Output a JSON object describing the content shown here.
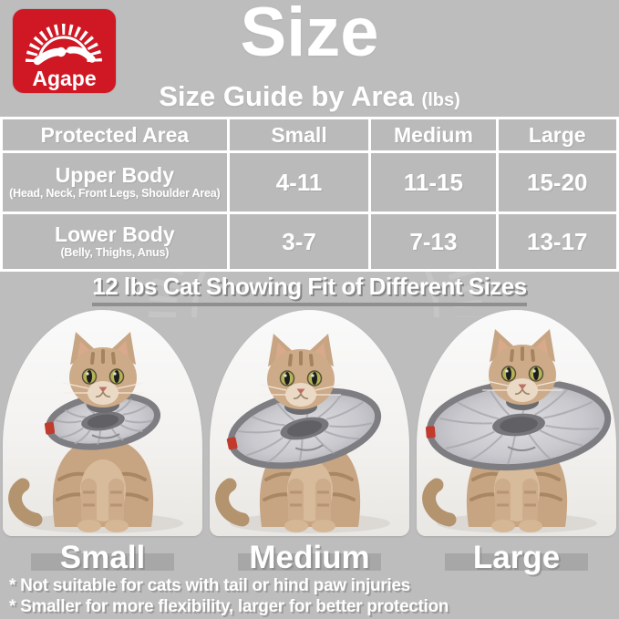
{
  "colors": {
    "background": "#bdbdbd",
    "brand_red": "#cf1824",
    "table_cell_gray": "#b0b0b0",
    "text_white": "#ffffff",
    "shadow_gray": "#8f8f8f",
    "cone_gray": "#c9c9ce",
    "cone_rim_gray": "#7d7d82"
  },
  "logo": {
    "brand": "Agape"
  },
  "header": {
    "title": "Size",
    "subtitle": "Size Guide by Area",
    "subtitle_unit": "(lbs)"
  },
  "table": {
    "headers": [
      "Protected Area",
      "Small",
      "Medium",
      "Large"
    ],
    "rows": [
      {
        "area": "Upper Body",
        "detail": "(Head, Neck, Front Legs, Shoulder Area)",
        "values": [
          "4-11",
          "11-15",
          "15-20"
        ]
      },
      {
        "area": "Lower Body",
        "detail": "(Belly, Thighs, Anus)",
        "values": [
          "3-7",
          "7-13",
          "13-17"
        ]
      }
    ]
  },
  "fit_section": {
    "heading": "12 lbs Cat Showing Fit of Different Sizes",
    "cards": [
      {
        "label": "Small"
      },
      {
        "label": "Medium"
      },
      {
        "label": "Large"
      }
    ]
  },
  "footnotes": [
    "* Not suitable for cats with tail or hind paw injuries",
    "* Smaller for more flexibility, larger for better protection"
  ]
}
